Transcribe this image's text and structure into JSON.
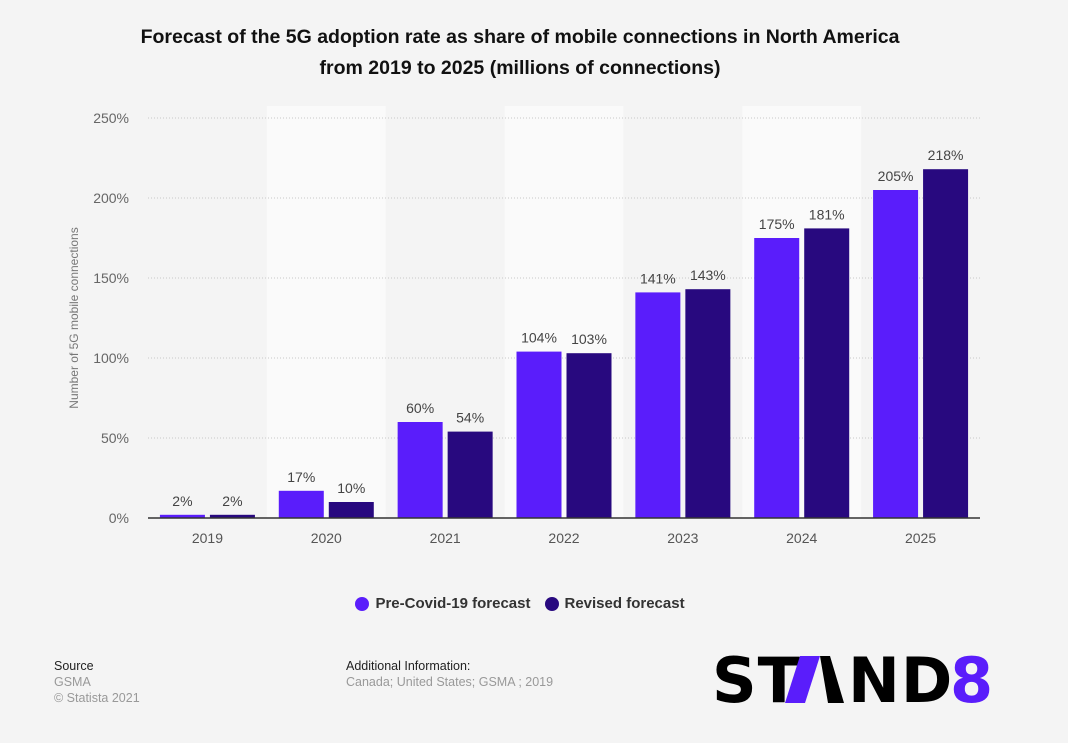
{
  "title_line1": "Forecast of the 5G adoption rate as share of mobile connections in North America",
  "title_line2": "from 2019 to 2025 (millions of connections)",
  "chart_data": {
    "type": "bar",
    "title": "Forecast of the 5G adoption rate as share of mobile connections in North America from 2019 to 2025 (millions of connections)",
    "xlabel": "",
    "ylabel": "Number of 5G mobile connections",
    "ylim": [
      0,
      250
    ],
    "yticks": [
      0,
      50,
      100,
      150,
      200,
      250
    ],
    "ytick_suffix": "%",
    "grid": true,
    "legend_position": "bottom",
    "categories": [
      "2019",
      "2020",
      "2021",
      "2022",
      "2023",
      "2024",
      "2025"
    ],
    "series": [
      {
        "name": "Pre-Covid-19 forecast",
        "color": "#5a1dfb",
        "values": [
          2,
          17,
          60,
          104,
          141,
          175,
          205
        ]
      },
      {
        "name": "Revised forecast",
        "color": "#28097f",
        "values": [
          2,
          10,
          54,
          103,
          143,
          181,
          218
        ]
      }
    ]
  },
  "footer": {
    "source_label": "Source",
    "source_value": "GSMA",
    "copyright": "© Statista 2021",
    "info_label": "Additional Information:",
    "info_value": "Canada; United States; GSMA ; 2019"
  },
  "logo": {
    "text": "STAND 8",
    "accent_color": "#5a1dfb"
  }
}
